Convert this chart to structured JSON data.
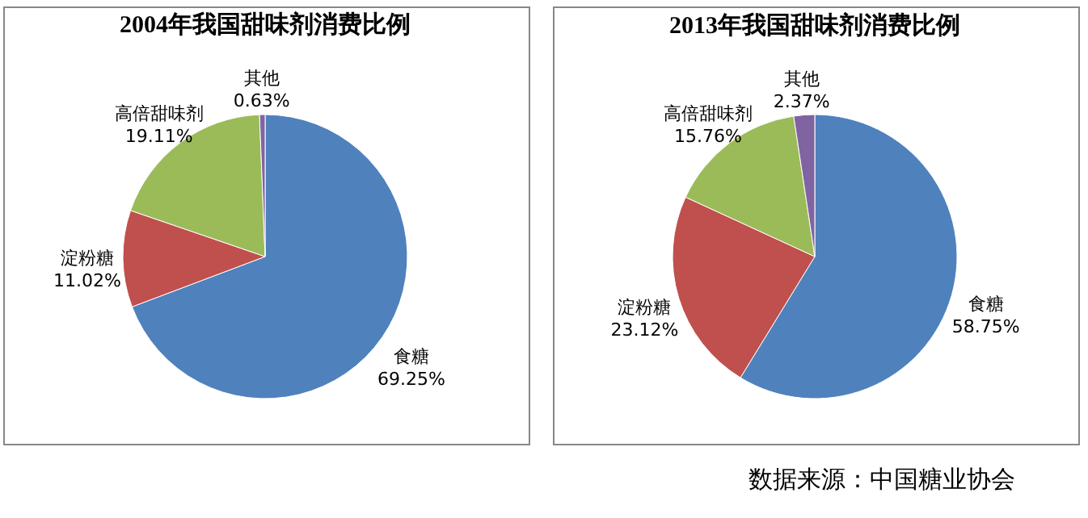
{
  "chart_data": [
    {
      "type": "pie",
      "title": "2004年我国甜味剂消费比例",
      "categories": [
        "食糖",
        "淀粉糖",
        "高倍甜味剂",
        "其他"
      ],
      "values": [
        69.25,
        11.02,
        19.11,
        0.63
      ],
      "colors": [
        "#4f81bd",
        "#c0504d",
        "#9bbb59",
        "#8064a2"
      ],
      "value_labels": [
        "69.25%",
        "11.02%",
        "19.11%",
        "0.63%"
      ]
    },
    {
      "type": "pie",
      "title": "2013年我国甜味剂消费比例",
      "categories": [
        "食糖",
        "淀粉糖",
        "高倍甜味剂",
        "其他"
      ],
      "values": [
        58.75,
        23.12,
        15.76,
        2.37
      ],
      "colors": [
        "#4f81bd",
        "#c0504d",
        "#9bbb59",
        "#8064a2"
      ],
      "value_labels": [
        "58.75%",
        "23.12%",
        "15.76%",
        "2.37%"
      ],
      "annotations": [
        "数据来源：中国糖业协会"
      ]
    }
  ]
}
